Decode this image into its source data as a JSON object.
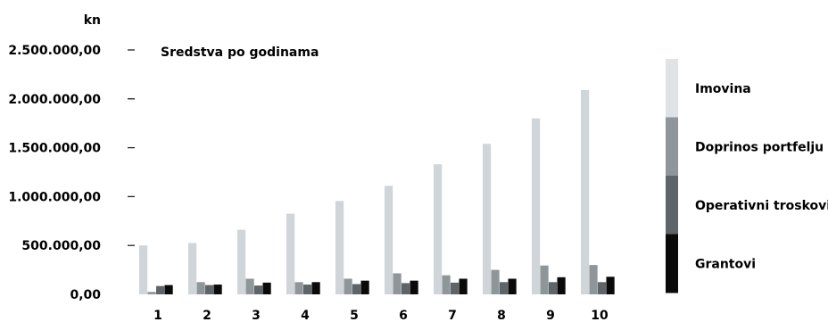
{
  "chart_data": {
    "type": "bar",
    "title": "Sredstva po godinama",
    "ylabel": "kn",
    "xlabel": "",
    "ylim": [
      0,
      2500000
    ],
    "yticks": [
      0,
      500000,
      1000000,
      1500000,
      2000000,
      2500000
    ],
    "ytick_labels": [
      "0,00",
      "500.000,00",
      "1.000.000,00",
      "1.500.000,00",
      "2.000.000,00",
      "2.500.000,00"
    ],
    "categories": [
      "1",
      "2",
      "3",
      "4",
      "5",
      "6",
      "7",
      "8",
      "9",
      "10"
    ],
    "legend_position": "right",
    "grid": false,
    "series": [
      {
        "name": "Imovina",
        "color": "#cfd5d8",
        "values": [
          500000,
          525000,
          660000,
          825000,
          955000,
          1110000,
          1330000,
          1540000,
          1800000,
          2090000
        ]
      },
      {
        "name": "Doprinos portfelju",
        "color": "#8e9699",
        "values": [
          25000,
          125000,
          160000,
          125000,
          160000,
          215000,
          195000,
          250000,
          295000,
          300000
        ]
      },
      {
        "name": "Operativni troskovi",
        "color": "#5e6467",
        "values": [
          85000,
          95000,
          90000,
          100000,
          105000,
          115000,
          120000,
          125000,
          125000,
          125000
        ]
      },
      {
        "name": "Grantovi",
        "color": "#0a0a0a",
        "values": [
          95000,
          100000,
          120000,
          125000,
          140000,
          140000,
          160000,
          160000,
          175000,
          180000
        ]
      }
    ]
  }
}
